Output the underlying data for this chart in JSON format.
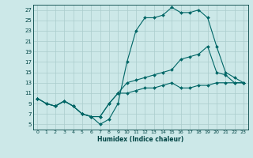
{
  "xlabel": "Humidex (Indice chaleur)",
  "bg_color": "#cce8e8",
  "grid_color": "#aacccc",
  "line_color": "#006666",
  "xlim": [
    -0.5,
    23.5
  ],
  "ylim": [
    4,
    28
  ],
  "yticks": [
    5,
    7,
    9,
    11,
    13,
    15,
    17,
    19,
    21,
    23,
    25,
    27
  ],
  "xticks": [
    0,
    1,
    2,
    3,
    4,
    5,
    6,
    7,
    8,
    9,
    10,
    11,
    12,
    13,
    14,
    15,
    16,
    17,
    18,
    19,
    20,
    21,
    22,
    23
  ],
  "line1_x": [
    0,
    1,
    2,
    3,
    4,
    5,
    6,
    7,
    8,
    9,
    10,
    11,
    12,
    13,
    14,
    15,
    16,
    17,
    18,
    19,
    20,
    21,
    22,
    23
  ],
  "line1_y": [
    10,
    9,
    8.5,
    9.5,
    8.5,
    7,
    6.5,
    5,
    6,
    9,
    17,
    23,
    25.5,
    25.5,
    26,
    27.5,
    26.5,
    26.5,
    27,
    25.5,
    20,
    15,
    14,
    13
  ],
  "line2_x": [
    0,
    1,
    2,
    3,
    4,
    5,
    6,
    7,
    8,
    9,
    10,
    11,
    12,
    13,
    14,
    15,
    16,
    17,
    18,
    19,
    20,
    21,
    22,
    23
  ],
  "line2_y": [
    10,
    9,
    8.5,
    9.5,
    8.5,
    7,
    6.5,
    6.5,
    9,
    11,
    13,
    13.5,
    14,
    14.5,
    15,
    15.5,
    17.5,
    18,
    18.5,
    20,
    15,
    14.5,
    13,
    13
  ],
  "line3_x": [
    0,
    1,
    2,
    3,
    4,
    5,
    6,
    7,
    8,
    9,
    10,
    11,
    12,
    13,
    14,
    15,
    16,
    17,
    18,
    19,
    20,
    21,
    22,
    23
  ],
  "line3_y": [
    10,
    9,
    8.5,
    9.5,
    8.5,
    7,
    6.5,
    6.5,
    9,
    11,
    11,
    11.5,
    12,
    12,
    12.5,
    13,
    12,
    12,
    12.5,
    12.5,
    13,
    13,
    13,
    13
  ]
}
